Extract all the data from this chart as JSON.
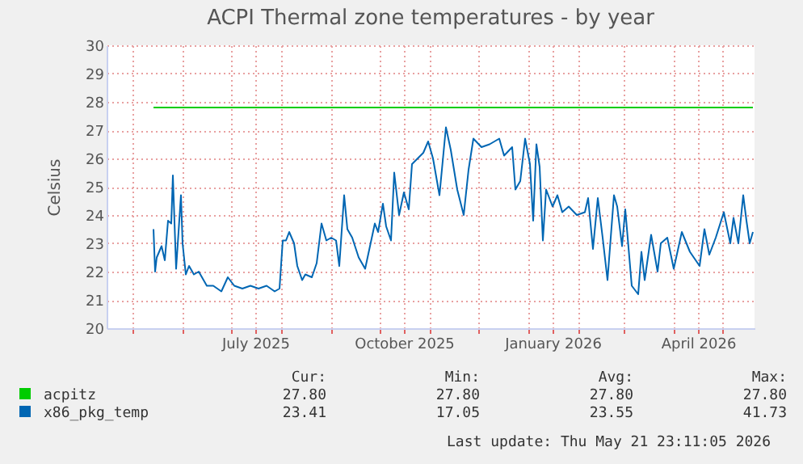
{
  "chart_data": {
    "type": "line",
    "title": "ACPI Thermal zone temperatures - by year",
    "ylabel": "Celsius",
    "xlim": [
      "2025-04-15",
      "2026-05-21"
    ],
    "ylim": [
      20,
      30
    ],
    "yticks": [
      20,
      21,
      22,
      23,
      24,
      25,
      26,
      27,
      28,
      29,
      30
    ],
    "xticks": [
      {
        "value": "2025-05-01",
        "label": null
      },
      {
        "value": "2025-06-01",
        "label": null
      },
      {
        "value": "2025-07-01",
        "label": null
      },
      {
        "value": "2025-07-16",
        "label": "July 2025"
      },
      {
        "value": "2025-08-01",
        "label": null
      },
      {
        "value": "2025-09-01",
        "label": null
      },
      {
        "value": "2025-10-01",
        "label": null
      },
      {
        "value": "2025-10-16",
        "label": "October 2025"
      },
      {
        "value": "2025-11-01",
        "label": null
      },
      {
        "value": "2025-12-01",
        "label": null
      },
      {
        "value": "2026-01-01",
        "label": null
      },
      {
        "value": "2026-01-16",
        "label": "January 2026"
      },
      {
        "value": "2026-02-01",
        "label": null
      },
      {
        "value": "2026-03-01",
        "label": null
      },
      {
        "value": "2026-04-01",
        "label": null
      },
      {
        "value": "2026-04-16",
        "label": "April 2026"
      },
      {
        "value": "2026-05-01",
        "label": null
      }
    ],
    "grid": true,
    "legend": "bottom left",
    "line_style": "solid",
    "annotations": [
      "Cur:",
      "Min:",
      "Avg:",
      "Max:",
      "27.80",
      "27.80",
      "27.80",
      "27.80",
      "23.41",
      "17.05",
      "23.55",
      "41.73",
      "Last update: Thu May 21 23:11:05 2026"
    ],
    "series": [
      {
        "name": "acpitz",
        "color": "#00cc00",
        "x": [
          "2025-05-14",
          "2026-05-20"
        ],
        "values": [
          27.8,
          27.8
        ]
      },
      {
        "name": "x86_pkg_temp",
        "color": "#0066b3",
        "x": [
          "2025-05-14",
          "2025-05-15",
          "2025-05-16",
          "2025-05-19",
          "2025-05-21",
          "2025-05-23",
          "2025-05-25",
          "2025-05-26",
          "2025-05-28",
          "2025-05-31",
          "2025-06-01",
          "2025-06-03",
          "2025-06-05",
          "2025-06-08",
          "2025-06-11",
          "2025-06-16",
          "2025-06-20",
          "2025-06-25",
          "2025-06-29",
          "2025-07-03",
          "2025-07-08",
          "2025-07-13",
          "2025-07-18",
          "2025-07-23",
          "2025-07-28",
          "2025-07-31",
          "2025-08-02",
          "2025-08-04",
          "2025-08-06",
          "2025-08-09",
          "2025-08-11",
          "2025-08-14",
          "2025-08-16",
          "2025-08-20",
          "2025-08-23",
          "2025-08-26",
          "2025-08-29",
          "2025-09-01",
          "2025-09-04",
          "2025-09-06",
          "2025-09-09",
          "2025-09-11",
          "2025-09-14",
          "2025-09-18",
          "2025-09-22",
          "2025-09-25",
          "2025-09-28",
          "2025-09-30",
          "2025-10-03",
          "2025-10-05",
          "2025-10-08",
          "2025-10-10",
          "2025-10-13",
          "2025-10-16",
          "2025-10-19",
          "2025-10-21",
          "2025-10-28",
          "2025-10-31",
          "2025-11-03",
          "2025-11-07",
          "2025-11-11",
          "2025-11-14",
          "2025-11-18",
          "2025-11-22",
          "2025-11-25",
          "2025-11-28",
          "2025-12-03",
          "2025-12-08",
          "2025-12-14",
          "2025-12-17",
          "2025-12-22",
          "2025-12-24",
          "2025-12-27",
          "2025-12-30",
          "2026-01-02",
          "2026-01-04",
          "2026-01-06",
          "2026-01-08",
          "2026-01-10",
          "2026-01-12",
          "2026-01-16",
          "2026-01-19",
          "2026-01-22",
          "2026-01-26",
          "2026-01-31",
          "2026-02-05",
          "2026-02-07",
          "2026-02-10",
          "2026-02-13",
          "2026-02-16",
          "2026-02-19",
          "2026-02-23",
          "2026-02-25",
          "2026-02-28",
          "2026-03-02",
          "2026-03-06",
          "2026-03-10",
          "2026-03-12",
          "2026-03-14",
          "2026-03-18",
          "2026-03-22",
          "2026-03-24",
          "2026-03-28",
          "2026-04-01",
          "2026-04-06",
          "2026-04-11",
          "2026-04-17",
          "2026-04-20",
          "2026-04-23",
          "2026-04-27",
          "2026-05-02",
          "2026-05-06",
          "2026-05-08",
          "2026-05-11",
          "2026-05-14",
          "2026-05-16",
          "2026-05-18",
          "2026-05-20"
        ],
        "values": [
          23.5,
          22.0,
          22.5,
          22.9,
          22.4,
          23.8,
          23.7,
          25.4,
          22.1,
          24.7,
          23.0,
          21.9,
          22.2,
          21.9,
          22.0,
          21.5,
          21.5,
          21.3,
          21.8,
          21.5,
          21.4,
          21.5,
          21.4,
          21.5,
          21.3,
          21.4,
          23.1,
          23.1,
          23.4,
          23.0,
          22.2,
          21.7,
          21.9,
          21.8,
          22.3,
          23.7,
          23.1,
          23.2,
          23.1,
          22.2,
          24.7,
          23.5,
          23.2,
          22.5,
          22.1,
          22.9,
          23.7,
          23.4,
          24.4,
          23.6,
          23.1,
          25.5,
          24.0,
          24.8,
          24.2,
          25.8,
          26.2,
          26.6,
          26.0,
          24.7,
          27.1,
          26.3,
          24.9,
          24.0,
          25.6,
          26.7,
          26.4,
          26.5,
          26.7,
          26.1,
          26.4,
          24.9,
          25.2,
          26.7,
          25.8,
          23.8,
          26.5,
          25.7,
          23.1,
          24.9,
          24.3,
          24.7,
          24.1,
          24.3,
          24.0,
          24.1,
          24.6,
          22.8,
          24.6,
          23.2,
          21.7,
          24.7,
          24.3,
          22.9,
          24.2,
          21.5,
          21.2,
          22.7,
          21.7,
          23.3,
          22.0,
          23.0,
          23.2,
          22.1,
          23.4,
          22.7,
          22.2,
          23.5,
          22.6,
          23.2,
          24.1,
          23.0,
          23.9,
          23.0,
          24.7,
          23.8,
          23.0,
          23.4
        ]
      }
    ]
  }
}
